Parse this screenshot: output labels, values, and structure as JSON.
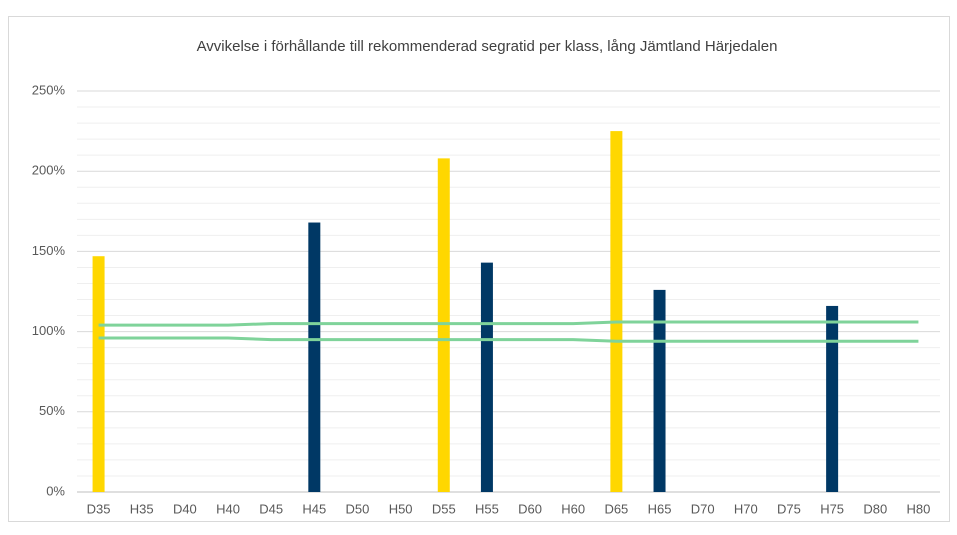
{
  "chart_data": {
    "type": "bar",
    "title": "Avvikelse i förhållande till rekommenderad segratid per klass, lång Jämtland Härjedalen",
    "categories": [
      "D35",
      "H35",
      "D40",
      "H40",
      "D45",
      "H45",
      "D50",
      "H50",
      "D55",
      "H55",
      "D60",
      "H60",
      "D65",
      "H65",
      "D70",
      "H70",
      "D75",
      "H75",
      "D80",
      "H80"
    ],
    "series": [
      {
        "type": "bar",
        "color": "#ffd700",
        "values": [
          147,
          null,
          null,
          null,
          null,
          null,
          null,
          null,
          208,
          null,
          null,
          null,
          225,
          null,
          null,
          null,
          null,
          null,
          null,
          null
        ]
      },
      {
        "type": "bar",
        "color": "#003865",
        "values": [
          null,
          null,
          null,
          null,
          null,
          168,
          null,
          null,
          null,
          143,
          null,
          null,
          null,
          126,
          null,
          null,
          null,
          116,
          null,
          null
        ]
      },
      {
        "type": "line",
        "color": "#7fd39a",
        "values": [
          104,
          104,
          104,
          104,
          105,
          105,
          105,
          105,
          105,
          105,
          105,
          105,
          106,
          106,
          106,
          106,
          106,
          106,
          106,
          106
        ]
      },
      {
        "type": "line",
        "color": "#7fd39a",
        "values": [
          96,
          96,
          96,
          96,
          95,
          95,
          95,
          95,
          95,
          95,
          95,
          95,
          94,
          94,
          94,
          94,
          94,
          94,
          94,
          94
        ]
      }
    ],
    "ylim": [
      0,
      250
    ],
    "yticks": [
      {
        "value": 0,
        "label": "0%"
      },
      {
        "value": 50,
        "label": "50%"
      },
      {
        "value": 100,
        "label": "100%"
      },
      {
        "value": 150,
        "label": "150%"
      },
      {
        "value": 200,
        "label": "200%"
      },
      {
        "value": 250,
        "label": "250%"
      }
    ],
    "yminor": [
      10,
      20,
      30,
      40,
      60,
      70,
      80,
      90,
      110,
      120,
      130,
      140,
      160,
      170,
      180,
      190,
      210,
      220,
      230,
      240
    ],
    "grid": true
  }
}
